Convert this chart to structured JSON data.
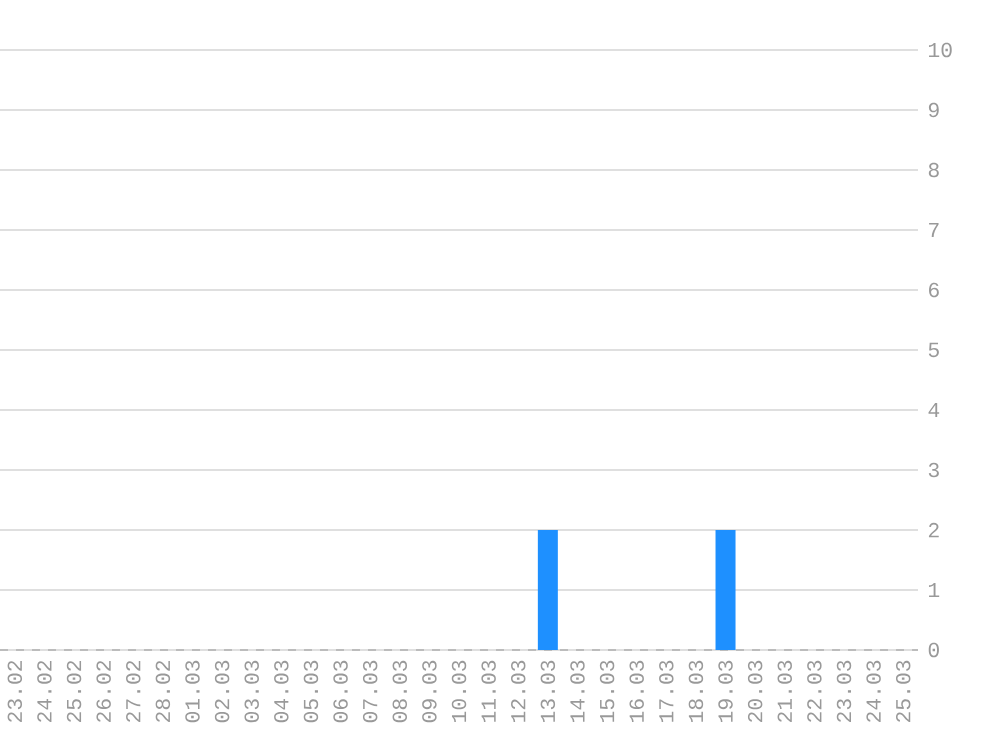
{
  "chart_data": {
    "type": "bar",
    "categories": [
      "23.02",
      "24.02",
      "25.02",
      "26.02",
      "27.02",
      "28.02",
      "01.03",
      "02.03",
      "03.03",
      "04.03",
      "05.03",
      "06.03",
      "07.03",
      "08.03",
      "09.03",
      "10.03",
      "11.03",
      "12.03",
      "13.03",
      "14.03",
      "15.03",
      "16.03",
      "17.03",
      "18.03",
      "19.03",
      "20.03",
      "21.03",
      "22.03",
      "23.03",
      "24.03",
      "25.03"
    ],
    "values": [
      0,
      0,
      0,
      0,
      0,
      0,
      0,
      0,
      0,
      0,
      0,
      0,
      0,
      0,
      0,
      0,
      0,
      0,
      2,
      0,
      0,
      0,
      0,
      0,
      2,
      0,
      0,
      0,
      0,
      0,
      0
    ],
    "color": "#1e90ff",
    "ylim": [
      0,
      10
    ],
    "yticks": [
      0,
      1,
      2,
      3,
      4,
      5,
      6,
      7,
      8,
      9,
      10
    ],
    "grid": "y"
  }
}
